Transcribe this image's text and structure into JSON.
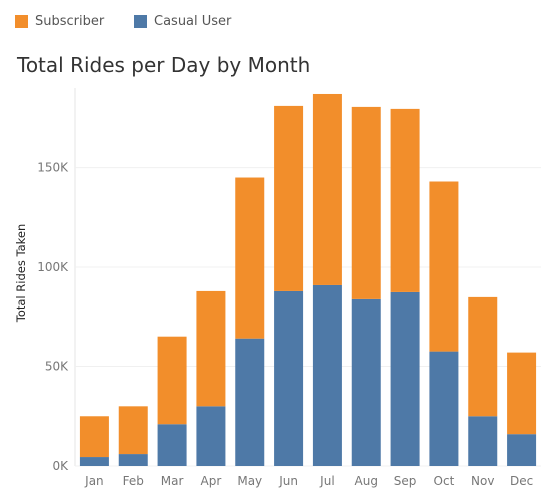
{
  "chart_data": {
    "type": "bar",
    "stacked": true,
    "title": "Total Rides per Day by Month",
    "xlabel": "",
    "ylabel": "Total Rides Taken",
    "categories": [
      "Jan",
      "Feb",
      "Mar",
      "Apr",
      "May",
      "Jun",
      "Jul",
      "Aug",
      "Sep",
      "Oct",
      "Nov",
      "Dec"
    ],
    "series": [
      {
        "name": "Casual User",
        "color": "#4e79a7",
        "values": [
          4500,
          6000,
          21000,
          30000,
          64000,
          88000,
          91000,
          84000,
          87500,
          57500,
          25000,
          16000
        ]
      },
      {
        "name": "Subscriber",
        "color": "#f28e2b",
        "values": [
          20500,
          24000,
          44000,
          58000,
          81000,
          93000,
          96000,
          96500,
          92000,
          85500,
          60000,
          41000
        ]
      }
    ],
    "yticks": [
      0,
      50000,
      100000,
      150000
    ],
    "ytick_labels": [
      "0K",
      "50K",
      "100K",
      "150K"
    ],
    "ylim": [
      0,
      190000
    ],
    "grid": true,
    "legend": {
      "position": "top-left",
      "items": [
        {
          "label": "Subscriber",
          "color": "#f28e2b"
        },
        {
          "label": "Casual User",
          "color": "#4e79a7"
        }
      ]
    }
  }
}
